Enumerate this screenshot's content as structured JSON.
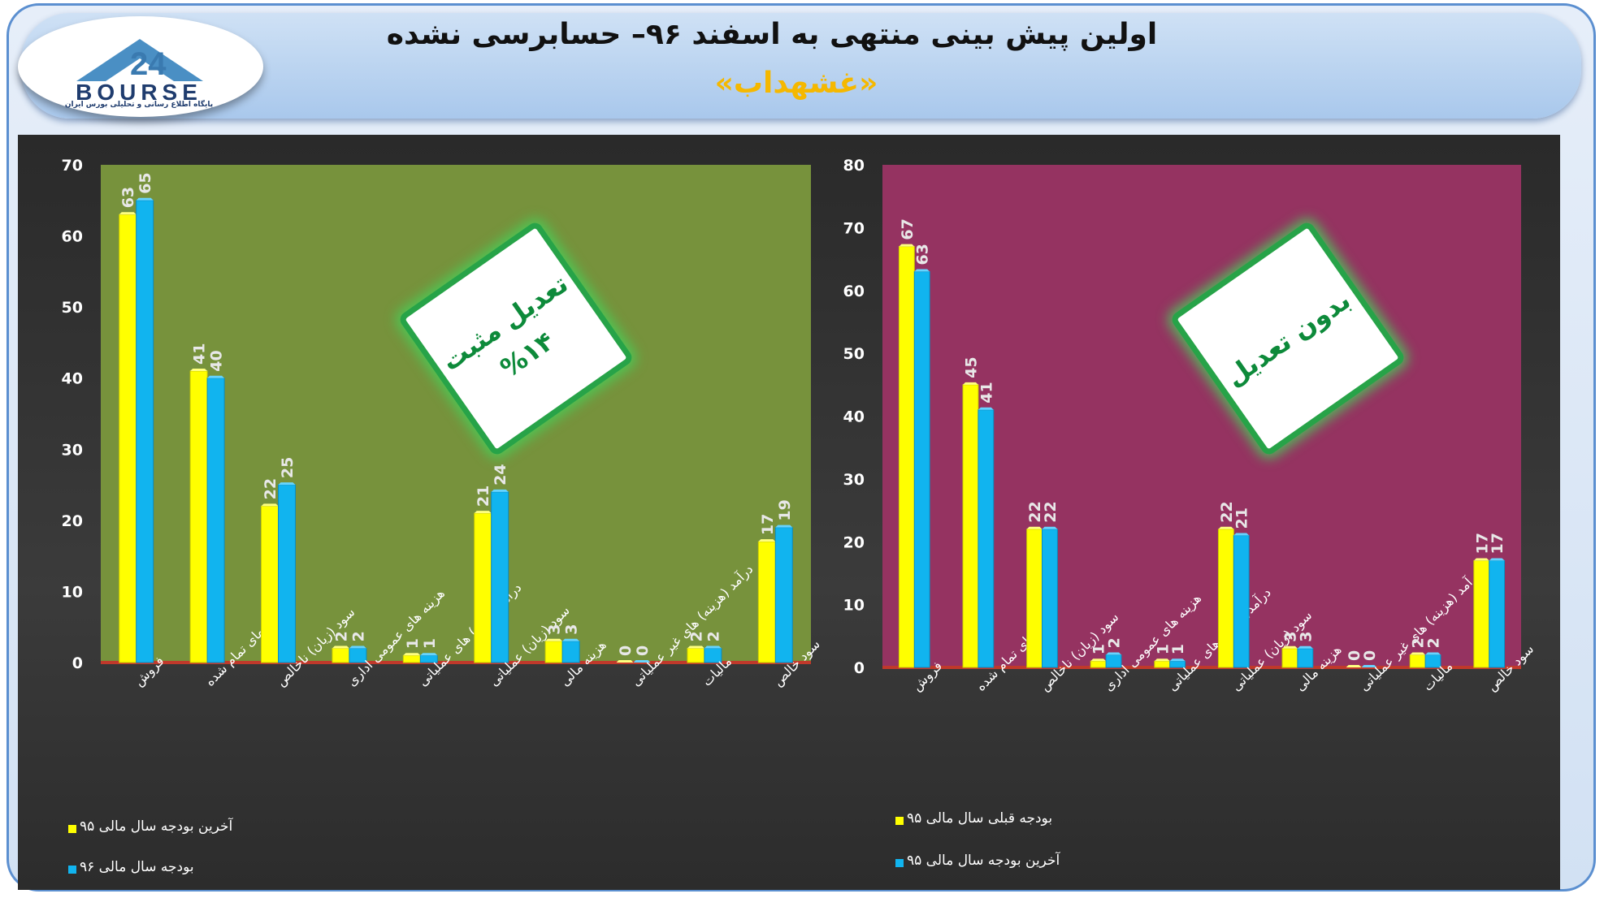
{
  "header": {
    "title": "اولین پیش بینی منتهی به اسفند ۹۶– حسابرسی نشده",
    "subtitle": "«غشهداب»",
    "logo_text": "BOURSE",
    "logo_sub": "پایگاه اطلاع رسانی و تحلیلی بورس ایران"
  },
  "colors": {
    "yellow_series": "#ffff00",
    "blue_series": "#11b4ef",
    "left_plot_bg": "#77923c",
    "right_plot_bg": "#953361",
    "badge_border": "#27a348",
    "title_accent": "#f5b800"
  },
  "chart_data": [
    {
      "type": "bar",
      "categories": [
        "فروش",
        "بهای تمام شده",
        "سود (زیان) ناخالص",
        "هزینه های عمومی اداری",
        "درآمد(هزینه) های عملیاتی",
        "سود (زیان) عملیاتی",
        "هزینه مالی",
        "درآمد (هزینه) های غیر عملیاتی",
        "مالیات",
        "سود خالص"
      ],
      "series": [
        {
          "name": "آخرین بودجه سال مالی ۹۵",
          "color": "#ffff00",
          "values": [
            63,
            41,
            22,
            2,
            1,
            21,
            3,
            0,
            2,
            17
          ]
        },
        {
          "name": "بودجه سال مالی ۹۶",
          "color": "#11b4ef",
          "values": [
            65,
            40,
            25,
            2,
            1,
            24,
            3,
            0,
            2,
            19
          ]
        }
      ],
      "yticks": [
        0,
        10,
        20,
        30,
        40,
        50,
        60,
        70
      ],
      "ylim": [
        0,
        70
      ],
      "badge": [
        "تعدیل مثبت",
        "%۱۴"
      ],
      "legend_position": "bottom-left"
    },
    {
      "type": "bar",
      "categories": [
        "فروش",
        "بهای تمام شده",
        "سود (زیان) ناخالص",
        "هزینه های عمومی اداری",
        "درآمد(هزینه) های عملیاتی",
        "سود (زیان) عملیاتی",
        "هزینه مالی",
        "درآمد (هزینه) های غیر عملیاتی",
        "مالیات",
        "سود خالص"
      ],
      "series": [
        {
          "name": "بودجه قبلی سال مالی ۹۵",
          "color": "#ffff00",
          "values": [
            67,
            45,
            22,
            1,
            1,
            22,
            3,
            0,
            2,
            17
          ]
        },
        {
          "name": "آخرین بودجه سال مالی ۹۵",
          "color": "#11b4ef",
          "values": [
            63,
            41,
            22,
            2,
            1,
            21,
            3,
            0,
            2,
            17
          ]
        }
      ],
      "yticks": [
        0,
        10,
        20,
        30,
        40,
        50,
        60,
        70,
        80
      ],
      "ylim": [
        0,
        80
      ],
      "badge": [
        "بدون تعدیل"
      ],
      "legend_position": "bottom-left"
    }
  ]
}
